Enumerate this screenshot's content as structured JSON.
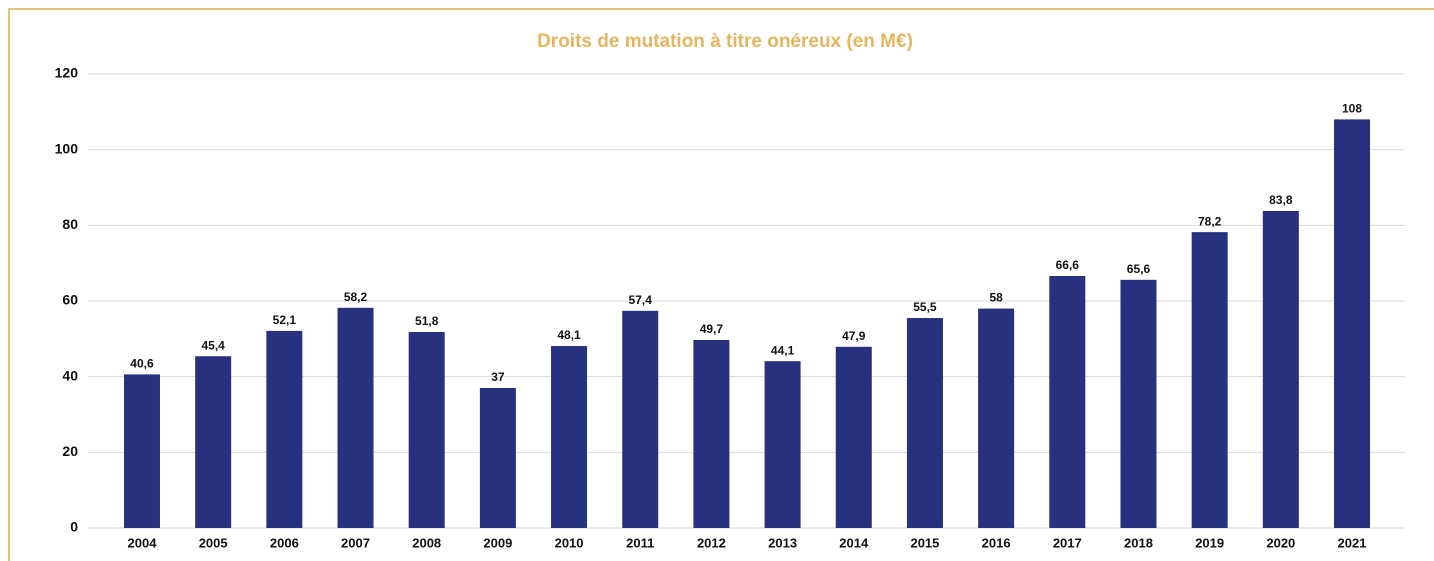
{
  "chart_data": {
    "type": "bar",
    "title": "Droits de mutation à titre onéreux (en M€)",
    "categories": [
      "2004",
      "2005",
      "2006",
      "2007",
      "2008",
      "2009",
      "2010",
      "2011",
      "2012",
      "2013",
      "2014",
      "2015",
      "2016",
      "2017",
      "2018",
      "2019",
      "2020",
      "2021"
    ],
    "values": [
      40.6,
      45.4,
      52.1,
      58.2,
      51.8,
      37,
      48.1,
      57.4,
      49.7,
      44.1,
      47.9,
      55.5,
      58,
      66.6,
      65.6,
      78.2,
      83.8,
      108
    ],
    "value_labels": [
      "40,6",
      "45,4",
      "52,1",
      "58,2",
      "51,8",
      "37",
      "48,1",
      "57,4",
      "49,7",
      "44,1",
      "47,9",
      "55,5",
      "58",
      "66,6",
      "65,6",
      "78,2",
      "83,8",
      "108"
    ],
    "color": "#27317f",
    "ylim": [
      0,
      120
    ],
    "yticks": [
      0,
      20,
      40,
      60,
      80,
      100,
      120
    ],
    "grid": true
  }
}
